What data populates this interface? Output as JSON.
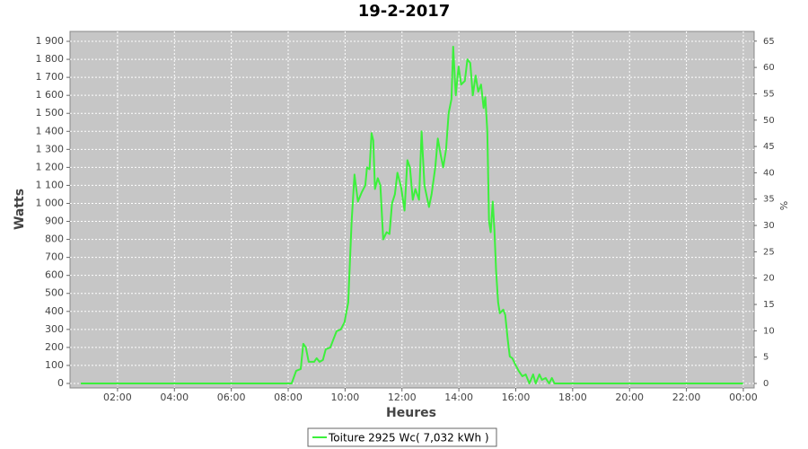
{
  "chart_data": {
    "type": "line",
    "title": "19-2-2017",
    "xlabel": "Heures",
    "ylabel": "Watts",
    "y2label": "%",
    "x": [
      0.71,
      7.96,
      8.12,
      8.28,
      8.44,
      8.53,
      8.62,
      8.72,
      8.91,
      9.0,
      9.1,
      9.22,
      9.32,
      9.48,
      9.7,
      9.85,
      9.98,
      10.11,
      10.23,
      10.33,
      10.45,
      10.58,
      10.71,
      10.77,
      10.86,
      10.93,
      10.99,
      11.05,
      11.15,
      11.24,
      11.34,
      11.46,
      11.56,
      11.65,
      11.75,
      11.84,
      11.97,
      12.09,
      12.19,
      12.28,
      12.38,
      12.47,
      12.6,
      12.69,
      12.79,
      12.95,
      13.04,
      13.17,
      13.26,
      13.36,
      13.45,
      13.55,
      13.64,
      13.74,
      13.8,
      13.89,
      13.99,
      14.08,
      14.21,
      14.3,
      14.4,
      14.49,
      14.59,
      14.68,
      14.78,
      14.87,
      14.93,
      15.0,
      15.06,
      15.12,
      15.19,
      15.25,
      15.31,
      15.38,
      15.44,
      15.56,
      15.63,
      15.72,
      15.79,
      15.88,
      15.97,
      16.1,
      16.23,
      16.35,
      16.48,
      16.61,
      16.7,
      16.83,
      16.92,
      17.05,
      17.17,
      17.27,
      17.36,
      23.99
    ],
    "series": [
      {
        "name": "Toiture 2925 Wc( 7,032 kWh )",
        "color": "#3cf03c",
        "values": [
          0,
          0,
          0,
          70,
          80,
          220,
          200,
          120,
          120,
          140,
          120,
          130,
          190,
          200,
          290,
          300,
          340,
          450,
          900,
          1160,
          1010,
          1060,
          1100,
          1200,
          1190,
          1390,
          1350,
          1080,
          1140,
          1100,
          800,
          840,
          830,
          1000,
          1050,
          1170,
          1090,
          960,
          1240,
          1200,
          1020,
          1080,
          1020,
          1400,
          1100,
          980,
          1050,
          1200,
          1360,
          1270,
          1200,
          1300,
          1500,
          1580,
          1870,
          1600,
          1760,
          1660,
          1680,
          1800,
          1780,
          1600,
          1710,
          1620,
          1660,
          1530,
          1590,
          1400,
          900,
          840,
          1010,
          850,
          620,
          450,
          390,
          410,
          380,
          240,
          150,
          140,
          110,
          70,
          40,
          50,
          0,
          50,
          0,
          50,
          20,
          30,
          0,
          30,
          0,
          0
        ]
      }
    ],
    "xlim": [
      0.33,
      24.38
    ],
    "xticks": [
      {
        "value": 2,
        "label": "02:00"
      },
      {
        "value": 4,
        "label": "04:00"
      },
      {
        "value": 6,
        "label": "06:00"
      },
      {
        "value": 8,
        "label": "08:00"
      },
      {
        "value": 10,
        "label": "10:00"
      },
      {
        "value": 12,
        "label": "12:00"
      },
      {
        "value": 14,
        "label": "14:00"
      },
      {
        "value": 16,
        "label": "16:00"
      },
      {
        "value": 18,
        "label": "18:00"
      },
      {
        "value": 20,
        "label": "20:00"
      },
      {
        "value": 22,
        "label": "22:00"
      },
      {
        "value": 24,
        "label": "00:00"
      }
    ],
    "ylim": [
      -25,
      1955
    ],
    "yticks": [
      0,
      100,
      200,
      300,
      400,
      500,
      600,
      700,
      800,
      900,
      {
        "value": 1000,
        "label": "1 000"
      },
      {
        "value": 1100,
        "label": "1 100"
      },
      {
        "value": 1200,
        "label": "1 200"
      },
      {
        "value": 1300,
        "label": "1 300"
      },
      {
        "value": 1400,
        "label": "1 400"
      },
      {
        "value": 1500,
        "label": "1 500"
      },
      {
        "value": 1600,
        "label": "1 600"
      },
      {
        "value": 1700,
        "label": "1 700"
      },
      {
        "value": 1800,
        "label": "1 800"
      },
      {
        "value": 1900,
        "label": "1 900"
      }
    ],
    "y2lim": [
      -0.85,
      66.84
    ],
    "y2ticks": [
      0,
      5,
      10,
      15,
      20,
      25,
      30,
      35,
      40,
      45,
      50,
      55,
      60,
      65
    ],
    "grid": true,
    "legend": "bottom"
  }
}
